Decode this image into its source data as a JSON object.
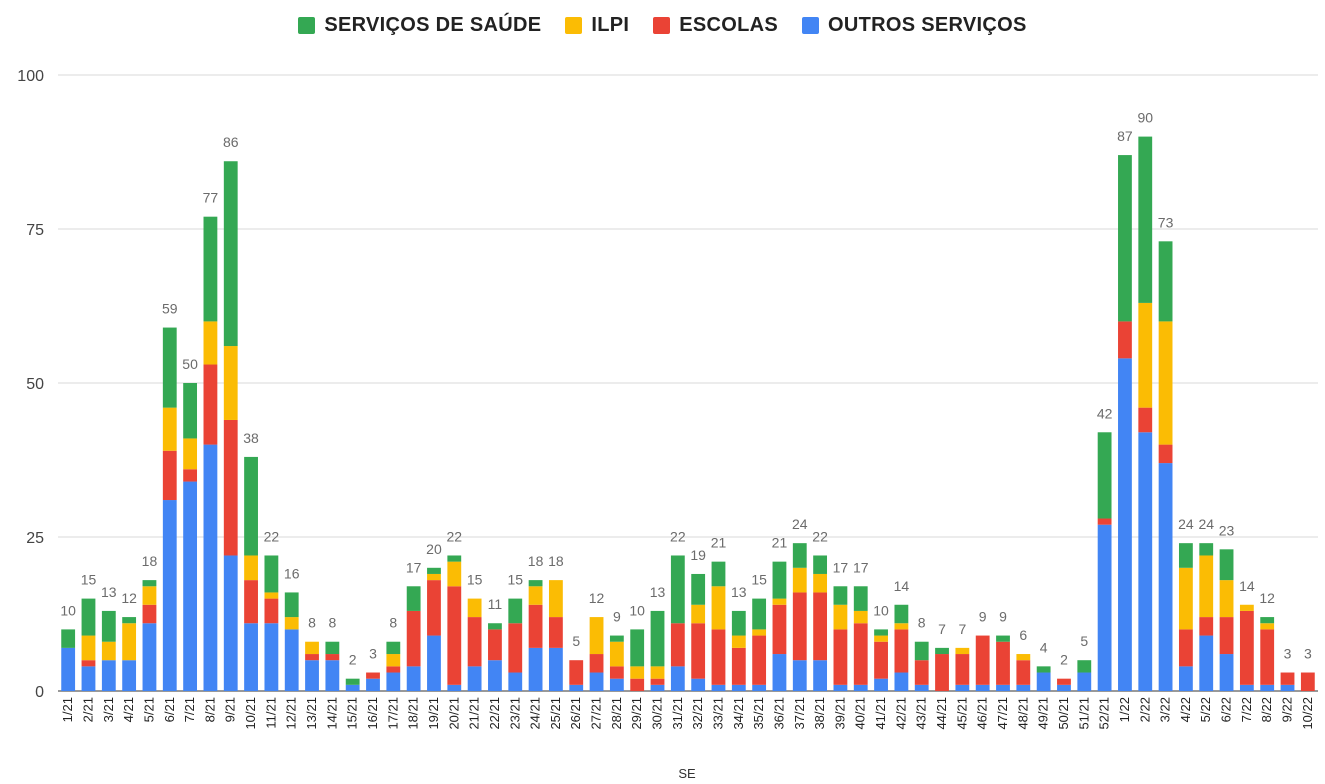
{
  "legend": {
    "items": [
      {
        "label": "SERVIÇOS DE SAÚDE",
        "color": "#34a853"
      },
      {
        "label": "ILPI",
        "color": "#fbbc04"
      },
      {
        "label": "ESCOLAS",
        "color": "#ea4335"
      },
      {
        "label": "OUTROS SERVIÇOS",
        "color": "#4285f4"
      }
    ]
  },
  "chart_data": {
    "type": "bar",
    "stacked": true,
    "xlabel": "SE",
    "ylabel": "",
    "ylim": [
      0,
      100
    ],
    "yticks": [
      0,
      25,
      50,
      75,
      100
    ],
    "grid": true,
    "legend_position": "top",
    "categories": [
      "1/21",
      "2/21",
      "3/21",
      "4/21",
      "5/21",
      "6/21",
      "7/21",
      "8/21",
      "9/21",
      "10/21",
      "11/21",
      "12/21",
      "13/21",
      "14/21",
      "15/21",
      "16/21",
      "17/21",
      "18/21",
      "19/21",
      "20/21",
      "21/21",
      "22/21",
      "23/21",
      "24/21",
      "25/21",
      "26/21",
      "27/21",
      "28/21",
      "29/21",
      "30/21",
      "31/21",
      "32/21",
      "33/21",
      "34/21",
      "35/21",
      "36/21",
      "37/21",
      "38/21",
      "39/21",
      "40/21",
      "41/21",
      "42/21",
      "43/21",
      "44/21",
      "45/21",
      "46/21",
      "47/21",
      "48/21",
      "49/21",
      "50/21",
      "51/21",
      "52/21",
      "1/22",
      "2/22",
      "3/22",
      "4/22",
      "5/22",
      "6/22",
      "7/22",
      "8/22",
      "9/22",
      "10/22"
    ],
    "series": [
      {
        "name": "OUTROS SERVIÇOS",
        "color": "#4285f4",
        "values": [
          7,
          4,
          5,
          5,
          11,
          31,
          34,
          40,
          22,
          11,
          11,
          10,
          5,
          5,
          1,
          2,
          3,
          4,
          9,
          1,
          4,
          5,
          3,
          7,
          7,
          1,
          3,
          2,
          0,
          1,
          4,
          2,
          1,
          1,
          1,
          6,
          5,
          5,
          1,
          1,
          2,
          3,
          1,
          0,
          1,
          1,
          1,
          1,
          3,
          1,
          3,
          27,
          54,
          42,
          37,
          4,
          9,
          6,
          1,
          1,
          1,
          0
        ]
      },
      {
        "name": "ESCOLAS",
        "color": "#ea4335",
        "values": [
          0,
          1,
          0,
          0,
          3,
          8,
          2,
          13,
          22,
          7,
          4,
          0,
          1,
          1,
          0,
          1,
          1,
          9,
          9,
          16,
          8,
          5,
          8,
          7,
          5,
          4,
          3,
          2,
          2,
          1,
          7,
          9,
          9,
          6,
          8,
          8,
          11,
          11,
          9,
          10,
          6,
          7,
          4,
          6,
          5,
          8,
          7,
          4,
          0,
          1,
          0,
          1,
          6,
          4,
          3,
          6,
          3,
          6,
          12,
          9,
          2,
          3
        ]
      },
      {
        "name": "ILPI",
        "color": "#fbbc04",
        "values": [
          0,
          4,
          3,
          6,
          3,
          7,
          5,
          7,
          12,
          4,
          1,
          2,
          2,
          0,
          0,
          0,
          2,
          0,
          1,
          4,
          3,
          0,
          0,
          3,
          6,
          0,
          6,
          4,
          2,
          2,
          0,
          3,
          7,
          2,
          1,
          1,
          4,
          3,
          4,
          2,
          1,
          1,
          0,
          0,
          1,
          0,
          0,
          1,
          0,
          0,
          0,
          0,
          0,
          17,
          20,
          10,
          10,
          6,
          1,
          1,
          0,
          0
        ]
      },
      {
        "name": "SERVIÇOS DE SAÚDE",
        "color": "#34a853",
        "values": [
          3,
          6,
          5,
          1,
          1,
          13,
          9,
          17,
          30,
          16,
          6,
          4,
          0,
          2,
          1,
          0,
          2,
          4,
          1,
          1,
          0,
          1,
          4,
          1,
          0,
          0,
          0,
          1,
          6,
          9,
          11,
          5,
          4,
          4,
          5,
          6,
          4,
          3,
          3,
          4,
          1,
          3,
          3,
          1,
          0,
          0,
          1,
          0,
          1,
          0,
          2,
          14,
          27,
          27,
          13,
          4,
          2,
          5,
          0,
          1,
          0,
          0
        ]
      }
    ],
    "totals": [
      10,
      15,
      13,
      12,
      18,
      59,
      50,
      77,
      86,
      38,
      22,
      16,
      8,
      8,
      2,
      3,
      8,
      17,
      20,
      22,
      15,
      11,
      15,
      18,
      18,
      5,
      12,
      9,
      10,
      13,
      22,
      19,
      21,
      13,
      15,
      21,
      24,
      22,
      17,
      17,
      10,
      14,
      8,
      7,
      7,
      9,
      9,
      6,
      4,
      2,
      5,
      42,
      87,
      90,
      73,
      24,
      24,
      23,
      14,
      12,
      3,
      3
    ]
  }
}
